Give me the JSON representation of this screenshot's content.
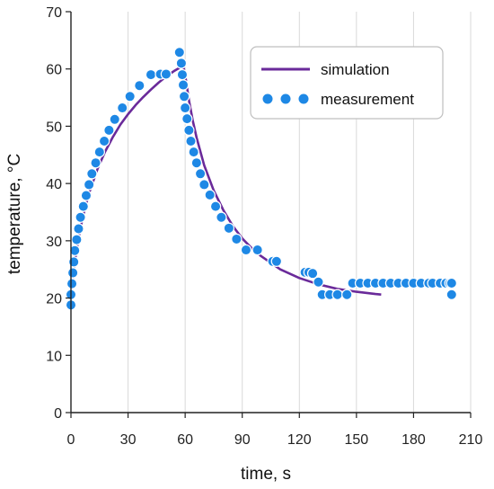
{
  "chart_data": {
    "type": "scatter",
    "xlabel": "time, s",
    "ylabel": "temperature, °C",
    "xlim": [
      0,
      210
    ],
    "ylim": [
      0,
      70
    ],
    "x_ticks": [
      0,
      30,
      60,
      90,
      120,
      150,
      180,
      210
    ],
    "y_ticks": [
      0,
      10,
      20,
      30,
      40,
      50,
      60,
      70
    ],
    "x_tick_labels": [
      "0",
      "30",
      "60",
      "90",
      "120",
      "150",
      "180",
      "210"
    ],
    "y_tick_labels": [
      "0",
      "10",
      "20",
      "30",
      "40",
      "50",
      "60",
      "70"
    ],
    "grid": "vertical",
    "legend_position": "top-right",
    "legend": [
      "simulation",
      "measurement"
    ],
    "series": [
      {
        "name": "simulation",
        "kind": "line",
        "color": "#6a2a9a",
        "points": [
          [
            0,
            20
          ],
          [
            1,
            23.5
          ],
          [
            2,
            26.2
          ],
          [
            4,
            30.5
          ],
          [
            6,
            33.8
          ],
          [
            8,
            36.5
          ],
          [
            10,
            38.8
          ],
          [
            14,
            42.6
          ],
          [
            18,
            45.6
          ],
          [
            22,
            48.1
          ],
          [
            26,
            50.3
          ],
          [
            30,
            52.1
          ],
          [
            34,
            53.7
          ],
          [
            38,
            55.1
          ],
          [
            42,
            56.4
          ],
          [
            46,
            57.6
          ],
          [
            50,
            58.7
          ],
          [
            54,
            59.6
          ],
          [
            58,
            60.4
          ],
          [
            59,
            60.5
          ],
          [
            60,
            59.0
          ],
          [
            62,
            54.5
          ],
          [
            64,
            51.0
          ],
          [
            66,
            48.0
          ],
          [
            70,
            43.2
          ],
          [
            75,
            38.8
          ],
          [
            80,
            35.4
          ],
          [
            85,
            32.6
          ],
          [
            90,
            30.4
          ],
          [
            95,
            28.7
          ],
          [
            100,
            27.3
          ],
          [
            110,
            25.0
          ],
          [
            120,
            23.5
          ],
          [
            130,
            22.4
          ],
          [
            140,
            21.6
          ],
          [
            150,
            21.1
          ],
          [
            160,
            20.7
          ],
          [
            163,
            20.6
          ]
        ]
      },
      {
        "name": "measurement",
        "kind": "scatter",
        "color": "#1e88e5",
        "points": [
          [
            0,
            18.8
          ],
          [
            0,
            20.6
          ],
          [
            0.5,
            22.5
          ],
          [
            1,
            24.4
          ],
          [
            1.5,
            26.3
          ],
          [
            2,
            28.3
          ],
          [
            3,
            30.2
          ],
          [
            4,
            32.1
          ],
          [
            5,
            34.1
          ],
          [
            6.5,
            36.0
          ],
          [
            8,
            37.9
          ],
          [
            9.5,
            39.8
          ],
          [
            11,
            41.7
          ],
          [
            13,
            43.6
          ],
          [
            15,
            45.5
          ],
          [
            17.5,
            47.4
          ],
          [
            20,
            49.3
          ],
          [
            23,
            51.2
          ],
          [
            27,
            53.2
          ],
          [
            31,
            55.2
          ],
          [
            36,
            57.1
          ],
          [
            42,
            59.0
          ],
          [
            47,
            59.1
          ],
          [
            50,
            59.1
          ],
          [
            57,
            62.9
          ],
          [
            58,
            61.0
          ],
          [
            58.5,
            59.0
          ],
          [
            59,
            57.2
          ],
          [
            59.5,
            55.2
          ],
          [
            60,
            53.2
          ],
          [
            61,
            51.3
          ],
          [
            62,
            49.3
          ],
          [
            63,
            47.4
          ],
          [
            64.5,
            45.5
          ],
          [
            66,
            43.6
          ],
          [
            68,
            41.7
          ],
          [
            70,
            39.8
          ],
          [
            73,
            38.0
          ],
          [
            76,
            36.0
          ],
          [
            79,
            34.1
          ],
          [
            83,
            32.2
          ],
          [
            87,
            30.3
          ],
          [
            92,
            28.4
          ],
          [
            98,
            28.4
          ],
          [
            106,
            26.4
          ],
          [
            108,
            26.4
          ],
          [
            123,
            24.5
          ],
          [
            125,
            24.5
          ],
          [
            127,
            24.3
          ],
          [
            130,
            22.8
          ],
          [
            132,
            20.6
          ],
          [
            136,
            20.6
          ],
          [
            140,
            20.6
          ],
          [
            145,
            20.6
          ],
          [
            148,
            22.6
          ],
          [
            152,
            22.6
          ],
          [
            156,
            22.6
          ],
          [
            160,
            22.6
          ],
          [
            164,
            22.6
          ],
          [
            168,
            22.6
          ],
          [
            172,
            22.6
          ],
          [
            176,
            22.6
          ],
          [
            180,
            22.6
          ],
          [
            184,
            22.6
          ],
          [
            188,
            22.6
          ],
          [
            190,
            22.6
          ],
          [
            194,
            22.6
          ],
          [
            197,
            22.6
          ],
          [
            199,
            22.6
          ],
          [
            200,
            22.6
          ],
          [
            200,
            20.6
          ]
        ]
      }
    ]
  },
  "colors": {
    "simulation_line": "#6a2a9a",
    "measurement_marker": "#1e88e5",
    "axis": "#222222",
    "grid": "#d9d9d9",
    "legend_border": "#bfbfbf"
  }
}
